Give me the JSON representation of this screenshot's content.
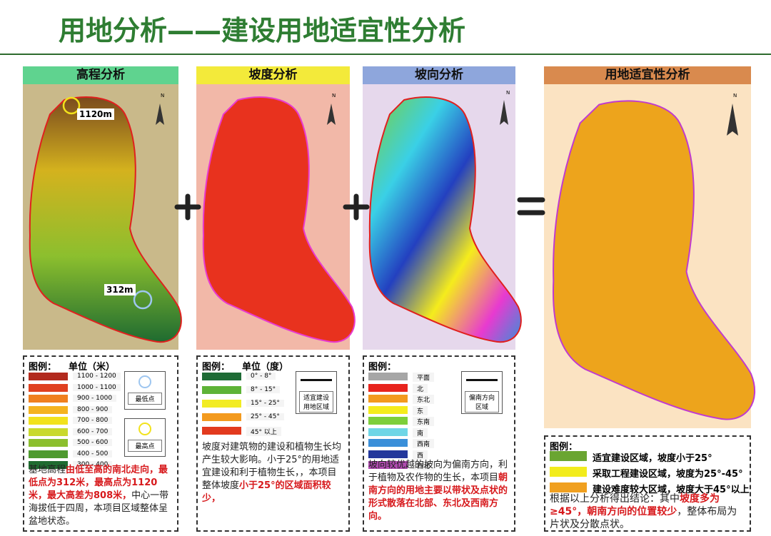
{
  "title": "用地分析——建设用地适宜性分析",
  "panels": [
    {
      "header": "高程分析",
      "header_color": "#5fd38f",
      "map_labels": [
        "1120m",
        "312m"
      ],
      "compass": "N",
      "legend": {
        "title": "图例：",
        "unit": "单位（米）",
        "items": [
          {
            "label": "1100 - 1200",
            "color": "#b22a1e"
          },
          {
            "label": "1000 - 1100",
            "color": "#e0401f"
          },
          {
            "label": "900 - 1000",
            "color": "#f0801f"
          },
          {
            "label": "800 - 900",
            "color": "#f5b31f"
          },
          {
            "label": "700 - 800",
            "color": "#f2e21c"
          },
          {
            "label": "600 - 700",
            "color": "#c9d92c"
          },
          {
            "label": "500 - 600",
            "color": "#8cbf2e"
          },
          {
            "label": "400 - 500",
            "color": "#4e9a2f"
          },
          {
            "label": "300 - 400",
            "color": "#1f6b30"
          }
        ],
        "markers": [
          "最低点",
          "最高点"
        ]
      },
      "description": [
        {
          "text": "基地高程",
          "color": "#222222"
        },
        {
          "text": "由低至高的南北走向，最低点为312米，最高点为1120米，最大高差为808米，",
          "color": "#d7191c"
        },
        {
          "text": "中心一带海拔低于四周，本项目区域整体呈盆地状态。",
          "color": "#222222"
        }
      ]
    },
    {
      "header": "坡度分析",
      "header_color": "#f3ea3a",
      "compass": "N",
      "legend": {
        "title": "图例：",
        "unit": "单位（度）",
        "items": [
          {
            "label": "0° - 8°",
            "color": "#1e6b35"
          },
          {
            "label": "8° - 15°",
            "color": "#5eb337"
          },
          {
            "label": "15° - 25°",
            "color": "#f2ec23"
          },
          {
            "label": "25° - 45°",
            "color": "#f39a1e"
          },
          {
            "label": "45° 以上",
            "color": "#e23a1e"
          }
        ],
        "markers": [
          "适宜建设用地区域"
        ]
      },
      "description": [
        {
          "text": "坡度对建筑物的建设和植物生长均产生较大影响。小于25°的用地适宜建设和利于植物生长，，本项目整体坡度",
          "color": "#222222"
        },
        {
          "text": "小于25°的区域面积较少，",
          "color": "#d7191c"
        }
      ]
    },
    {
      "header": "坡向分析",
      "header_color": "#8ea6dc",
      "compass": "N",
      "legend": {
        "title": "图例：",
        "items": [
          {
            "label": "平面",
            "color": "#a6a6a6"
          },
          {
            "label": "北",
            "color": "#e8231d"
          },
          {
            "label": "东北",
            "color": "#f39a1e"
          },
          {
            "label": "东",
            "color": "#f5ec1c"
          },
          {
            "label": "东南",
            "color": "#7dcf3a"
          },
          {
            "label": "南",
            "color": "#6fd6e6"
          },
          {
            "label": "西南",
            "color": "#3a8fd9"
          },
          {
            "label": "西",
            "color": "#23379b"
          },
          {
            "label": "西北",
            "color": "#b04bb0"
          }
        ],
        "markers": [
          "偏南方向区域"
        ]
      },
      "description": [
        {
          "text": "坡向较优越的坡向为偏南方向，利于植物及农作物的生长，本项目",
          "color": "#222222"
        },
        {
          "text": "朝南方向的用地主要以带状及点状的形式散落在北部、东北及西南方向。",
          "color": "#d7191c"
        }
      ]
    },
    {
      "header": "用地适宜性分析",
      "header_color": "#d98a4e",
      "compass": "N",
      "legend": {
        "title": "图例：",
        "items": [
          {
            "label": "适宜建设区域，坡度小于25°",
            "color": "#6aa531"
          },
          {
            "label": "采取工程建设区域，坡度为25°-45°",
            "color": "#f2ec1c"
          },
          {
            "label": "建设难度较大区域，坡度大于45°以上",
            "color": "#f0a020"
          }
        ]
      },
      "description": [
        {
          "text": "根据以上分析得出结论：其中",
          "color": "#222222"
        },
        {
          "text": "坡度多为≥45°，朝南方向的位置较少",
          "color": "#d7191c"
        },
        {
          "text": "，整体布局为片状及分散点状。",
          "color": "#222222"
        }
      ]
    }
  ]
}
